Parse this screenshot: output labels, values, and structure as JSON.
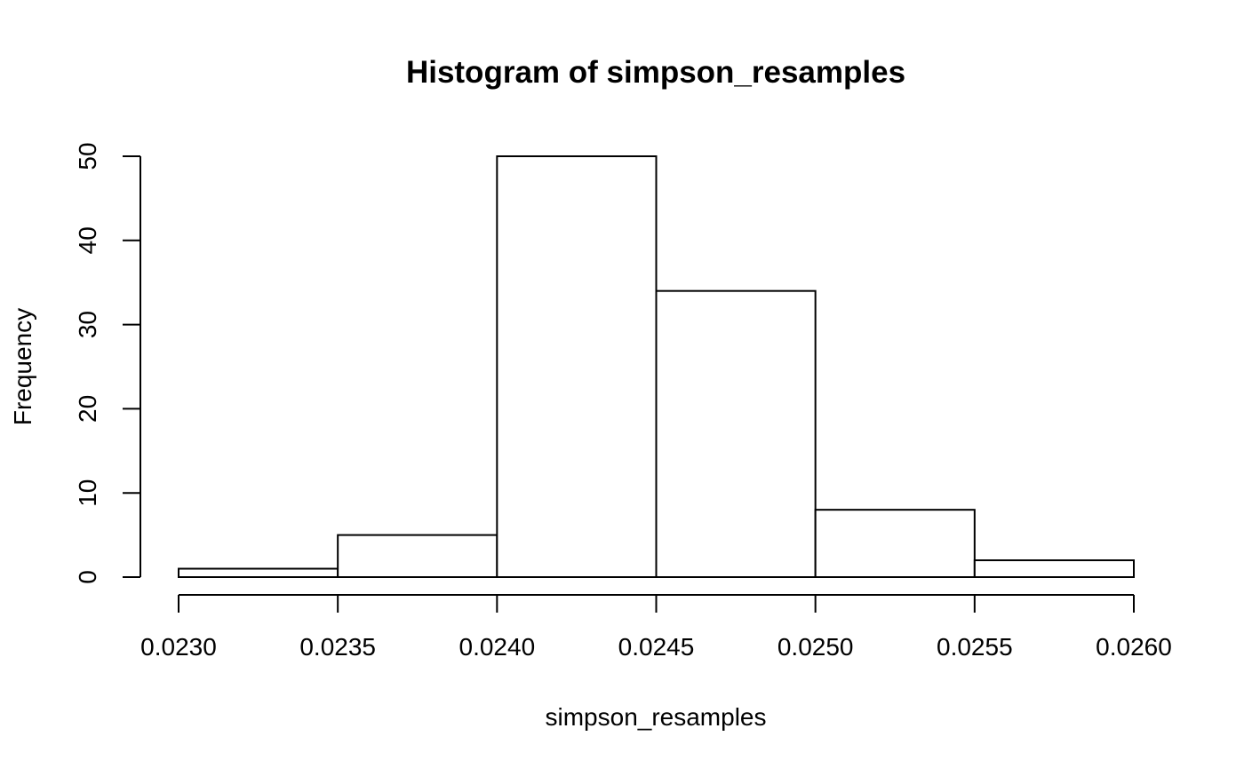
{
  "chart_data": {
    "type": "bar",
    "title": "Histogram of simpson_resamples",
    "xlabel": "simpson_resamples",
    "ylabel": "Frequency",
    "bins": [
      {
        "from": 0.023,
        "to": 0.0235,
        "count": 1
      },
      {
        "from": 0.0235,
        "to": 0.024,
        "count": 5
      },
      {
        "from": 0.024,
        "to": 0.0245,
        "count": 50
      },
      {
        "from": 0.0245,
        "to": 0.025,
        "count": 34
      },
      {
        "from": 0.025,
        "to": 0.0255,
        "count": 8
      },
      {
        "from": 0.0255,
        "to": 0.026,
        "count": 2
      }
    ],
    "xlim": [
      0.023,
      0.026
    ],
    "ylim": [
      0,
      50
    ],
    "x_ticks": [
      "0.0230",
      "0.0235",
      "0.0240",
      "0.0245",
      "0.0250",
      "0.0255",
      "0.0260"
    ],
    "y_ticks": [
      "0",
      "10",
      "20",
      "30",
      "40",
      "50"
    ],
    "grid": false,
    "bar_fill": "#ffffff",
    "bar_stroke": "#000000"
  }
}
